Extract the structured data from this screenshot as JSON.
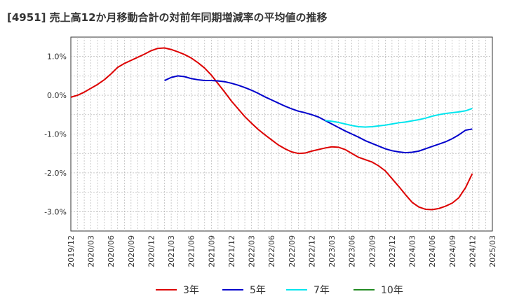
{
  "title": "[4951]  売上高12か月移動合計の対前年同期増減率の平均値の推移",
  "chart_data": {
    "type": "line",
    "title": "[4951]  売上高12か月移動合計の対前年同期増減率の平均値の推移",
    "xlabel": "",
    "ylabel": "",
    "x_ticks": [
      "2019/12",
      "2020/03",
      "2020/06",
      "2020/09",
      "2020/12",
      "2021/03",
      "2021/06",
      "2021/09",
      "2021/12",
      "2022/03",
      "2022/06",
      "2022/09",
      "2022/12",
      "2023/03",
      "2023/06",
      "2023/09",
      "2023/12",
      "2024/03",
      "2024/06",
      "2024/09",
      "2024/12",
      "2025/03"
    ],
    "y_ticks": [
      1.0,
      0.0,
      -1.0,
      -2.0,
      -3.0
    ],
    "y_tick_labels": [
      "1.0%",
      "0.0%",
      "-1.0%",
      "-2.0%",
      "-3.0%"
    ],
    "ylim": [
      -3.5,
      1.5
    ],
    "grid": true,
    "legend_position": "bottom",
    "series": [
      {
        "name": "3年",
        "color": "#dd0000",
        "points": [
          [
            "2019/12",
            -0.05
          ],
          [
            "2020/01",
            0.0
          ],
          [
            "2020/02",
            0.08
          ],
          [
            "2020/03",
            0.18
          ],
          [
            "2020/04",
            0.28
          ],
          [
            "2020/05",
            0.4
          ],
          [
            "2020/06",
            0.55
          ],
          [
            "2020/07",
            0.72
          ],
          [
            "2020/08",
            0.82
          ],
          [
            "2020/09",
            0.9
          ],
          [
            "2020/10",
            0.98
          ],
          [
            "2020/11",
            1.06
          ],
          [
            "2020/12",
            1.15
          ],
          [
            "2021/01",
            1.21
          ],
          [
            "2021/02",
            1.22
          ],
          [
            "2021/03",
            1.18
          ],
          [
            "2021/04",
            1.12
          ],
          [
            "2021/05",
            1.05
          ],
          [
            "2021/06",
            0.96
          ],
          [
            "2021/07",
            0.84
          ],
          [
            "2021/08",
            0.7
          ],
          [
            "2021/09",
            0.52
          ],
          [
            "2021/10",
            0.3
          ],
          [
            "2021/11",
            0.08
          ],
          [
            "2021/12",
            -0.15
          ],
          [
            "2022/01",
            -0.35
          ],
          [
            "2022/02",
            -0.55
          ],
          [
            "2022/03",
            -0.72
          ],
          [
            "2022/04",
            -0.88
          ],
          [
            "2022/05",
            -1.02
          ],
          [
            "2022/06",
            -1.15
          ],
          [
            "2022/07",
            -1.28
          ],
          [
            "2022/08",
            -1.38
          ],
          [
            "2022/09",
            -1.46
          ],
          [
            "2022/10",
            -1.5
          ],
          [
            "2022/11",
            -1.49
          ],
          [
            "2022/12",
            -1.44
          ],
          [
            "2023/01",
            -1.4
          ],
          [
            "2023/02",
            -1.36
          ],
          [
            "2023/03",
            -1.33
          ],
          [
            "2023/04",
            -1.34
          ],
          [
            "2023/05",
            -1.4
          ],
          [
            "2023/06",
            -1.5
          ],
          [
            "2023/07",
            -1.6
          ],
          [
            "2023/08",
            -1.66
          ],
          [
            "2023/09",
            -1.72
          ],
          [
            "2023/10",
            -1.82
          ],
          [
            "2023/11",
            -1.95
          ],
          [
            "2023/12",
            -2.15
          ],
          [
            "2024/01",
            -2.35
          ],
          [
            "2024/02",
            -2.56
          ],
          [
            "2024/03",
            -2.76
          ],
          [
            "2024/04",
            -2.88
          ],
          [
            "2024/05",
            -2.94
          ],
          [
            "2024/06",
            -2.95
          ],
          [
            "2024/07",
            -2.92
          ],
          [
            "2024/08",
            -2.86
          ],
          [
            "2024/09",
            -2.78
          ],
          [
            "2024/10",
            -2.64
          ],
          [
            "2024/11",
            -2.38
          ],
          [
            "2024/12",
            -2.02
          ]
        ]
      },
      {
        "name": "5年",
        "color": "#0000cc",
        "points": [
          [
            "2021/02",
            0.38
          ],
          [
            "2021/03",
            0.46
          ],
          [
            "2021/04",
            0.5
          ],
          [
            "2021/05",
            0.48
          ],
          [
            "2021/06",
            0.43
          ],
          [
            "2021/07",
            0.4
          ],
          [
            "2021/08",
            0.38
          ],
          [
            "2021/09",
            0.38
          ],
          [
            "2021/10",
            0.37
          ],
          [
            "2021/11",
            0.35
          ],
          [
            "2021/12",
            0.31
          ],
          [
            "2022/01",
            0.26
          ],
          [
            "2022/02",
            0.2
          ],
          [
            "2022/03",
            0.13
          ],
          [
            "2022/04",
            0.05
          ],
          [
            "2022/05",
            -0.04
          ],
          [
            "2022/06",
            -0.12
          ],
          [
            "2022/07",
            -0.2
          ],
          [
            "2022/08",
            -0.28
          ],
          [
            "2022/09",
            -0.35
          ],
          [
            "2022/10",
            -0.41
          ],
          [
            "2022/11",
            -0.45
          ],
          [
            "2022/12",
            -0.5
          ],
          [
            "2023/01",
            -0.56
          ],
          [
            "2023/02",
            -0.65
          ],
          [
            "2023/03",
            -0.74
          ],
          [
            "2023/04",
            -0.83
          ],
          [
            "2023/05",
            -0.92
          ],
          [
            "2023/06",
            -1.0
          ],
          [
            "2023/07",
            -1.08
          ],
          [
            "2023/08",
            -1.17
          ],
          [
            "2023/09",
            -1.24
          ],
          [
            "2023/10",
            -1.31
          ],
          [
            "2023/11",
            -1.38
          ],
          [
            "2023/12",
            -1.43
          ],
          [
            "2024/01",
            -1.46
          ],
          [
            "2024/02",
            -1.48
          ],
          [
            "2024/03",
            -1.47
          ],
          [
            "2024/04",
            -1.44
          ],
          [
            "2024/05",
            -1.38
          ],
          [
            "2024/06",
            -1.32
          ],
          [
            "2024/07",
            -1.26
          ],
          [
            "2024/08",
            -1.2
          ],
          [
            "2024/09",
            -1.12
          ],
          [
            "2024/10",
            -1.02
          ],
          [
            "2024/11",
            -0.9
          ],
          [
            "2024/12",
            -0.87
          ]
        ]
      },
      {
        "name": "7年",
        "color": "#00e5ee",
        "points": [
          [
            "2023/02",
            -0.65
          ],
          [
            "2023/03",
            -0.67
          ],
          [
            "2023/04",
            -0.7
          ],
          [
            "2023/05",
            -0.74
          ],
          [
            "2023/06",
            -0.78
          ],
          [
            "2023/07",
            -0.81
          ],
          [
            "2023/08",
            -0.82
          ],
          [
            "2023/09",
            -0.81
          ],
          [
            "2023/10",
            -0.79
          ],
          [
            "2023/11",
            -0.77
          ],
          [
            "2023/12",
            -0.74
          ],
          [
            "2024/01",
            -0.71
          ],
          [
            "2024/02",
            -0.69
          ],
          [
            "2024/03",
            -0.66
          ],
          [
            "2024/04",
            -0.63
          ],
          [
            "2024/05",
            -0.59
          ],
          [
            "2024/06",
            -0.54
          ],
          [
            "2024/07",
            -0.5
          ],
          [
            "2024/08",
            -0.47
          ],
          [
            "2024/09",
            -0.45
          ],
          [
            "2024/10",
            -0.43
          ],
          [
            "2024/11",
            -0.4
          ],
          [
            "2024/12",
            -0.34
          ]
        ]
      },
      {
        "name": "10年",
        "color": "#228b22",
        "points": []
      }
    ]
  }
}
